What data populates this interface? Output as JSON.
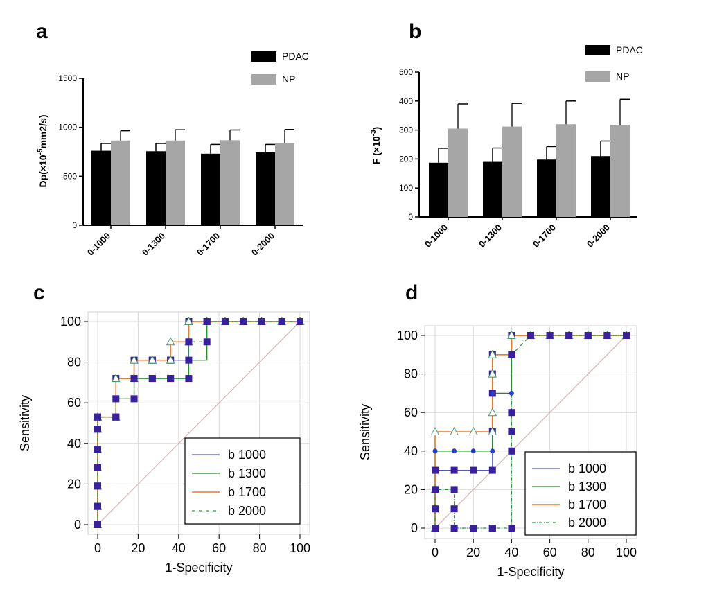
{
  "panels": {
    "a": "a",
    "b": "b",
    "c": "c",
    "d": "d"
  },
  "colors": {
    "pdac": "#000000",
    "np": "#a6a6a6",
    "b1000": "#5555cc",
    "b1300": "#228822",
    "b1700": "#f07820",
    "b2000": "#1f9e3a",
    "marker_square": "#3a1fa0",
    "diag": "#d9b3b3",
    "grid": "#d9d9d9"
  },
  "chart_data": [
    {
      "id": "a",
      "type": "bar",
      "ylabel_main": "Dp(×10",
      "ylabel_sup": "-5",
      "ylabel_tail": "mm2/s)",
      "categories": [
        "0-1000",
        "0-1300",
        "0-1700",
        "0-2000"
      ],
      "series": [
        {
          "name": "PDAC",
          "values": [
            760,
            755,
            730,
            745
          ],
          "errors": [
            75,
            80,
            95,
            80
          ]
        },
        {
          "name": "NP",
          "values": [
            865,
            865,
            868,
            838
          ],
          "errors": [
            100,
            110,
            105,
            140
          ]
        }
      ],
      "ylim": [
        0,
        1500
      ],
      "yticks": [
        "0",
        "500",
        "1000",
        "1500"
      ],
      "ytick_values": [
        0,
        500,
        1000,
        1500
      ]
    },
    {
      "id": "b",
      "type": "bar",
      "ylabel_main": "F (×10",
      "ylabel_sup": "-3",
      "ylabel_tail": ")",
      "categories": [
        "0-1000",
        "0-1300",
        "0-1700",
        "0-2000"
      ],
      "series": [
        {
          "name": "PDAC",
          "values": [
            187,
            190,
            198,
            210
          ],
          "errors": [
            50,
            48,
            45,
            52
          ]
        },
        {
          "name": "NP",
          "values": [
            305,
            312,
            320,
            318
          ],
          "errors": [
            85,
            80,
            80,
            88
          ]
        }
      ],
      "ylim": [
        0,
        500
      ],
      "yticks": [
        "0",
        "100",
        "200",
        "300",
        "400",
        "500"
      ],
      "ytick_values": [
        0,
        100,
        200,
        300,
        400,
        500
      ]
    },
    {
      "id": "c",
      "type": "line",
      "xlabel": "1-Specificity",
      "ylabel": "Sensitivity",
      "xlim": [
        0,
        100
      ],
      "ylim": [
        0,
        100
      ],
      "xticks": [
        "0",
        "20",
        "40",
        "60",
        "80",
        "100"
      ],
      "yticks": [
        "0",
        "20",
        "40",
        "60",
        "80",
        "100"
      ],
      "tick_values": [
        0,
        20,
        40,
        60,
        80,
        100
      ],
      "series": [
        {
          "name": "b 1000",
          "x": [
            0,
            0,
            0,
            0,
            0,
            0,
            0,
            9,
            9,
            18,
            18,
            27,
            27,
            36,
            36,
            45,
            45,
            54,
            54,
            63,
            72,
            81,
            91,
            100
          ],
          "y": [
            0,
            9,
            19,
            28,
            37,
            47,
            53,
            53,
            72,
            72,
            81,
            81,
            81,
            81,
            81,
            81,
            100,
            100,
            100,
            100,
            100,
            100,
            100,
            100
          ]
        },
        {
          "name": "b 1300",
          "x": [
            0,
            0,
            0,
            0,
            0,
            0,
            0,
            9,
            9,
            18,
            18,
            27,
            27,
            36,
            36,
            45,
            45,
            54,
            54,
            63,
            72,
            81,
            91,
            100
          ],
          "y": [
            0,
            9,
            19,
            28,
            37,
            47,
            53,
            53,
            62,
            62,
            72,
            72,
            72,
            72,
            72,
            72,
            81,
            81,
            100,
            100,
            100,
            100,
            100,
            100
          ]
        },
        {
          "name": "b 1700",
          "x": [
            0,
            0,
            0,
            0,
            0,
            0,
            0,
            9,
            9,
            18,
            18,
            27,
            27,
            36,
            36,
            45,
            45,
            54,
            54,
            63,
            72,
            81,
            91,
            100
          ],
          "y": [
            0,
            9,
            19,
            28,
            37,
            47,
            53,
            53,
            72,
            72,
            81,
            81,
            81,
            81,
            90,
            90,
            100,
            100,
            100,
            100,
            100,
            100,
            100,
            100
          ]
        },
        {
          "name": "b 2000",
          "x": [
            0,
            0,
            0,
            0,
            0,
            0,
            0,
            9,
            9,
            18,
            18,
            27,
            27,
            36,
            36,
            45,
            45,
            54,
            54,
            63,
            72,
            81,
            91,
            100
          ],
          "y": [
            0,
            9,
            19,
            28,
            37,
            47,
            53,
            53,
            62,
            62,
            72,
            72,
            72,
            72,
            72,
            72,
            90,
            90,
            100,
            100,
            100,
            100,
            100,
            100
          ]
        }
      ],
      "legend": [
        "b 1000",
        "b 1300",
        "b 1700",
        "b 2000"
      ],
      "legend_position": "bottom-right"
    },
    {
      "id": "d",
      "type": "line",
      "xlabel": "1-Specificity",
      "ylabel": "Sensitivity",
      "xlim": [
        0,
        100
      ],
      "ylim": [
        0,
        100
      ],
      "xticks": [
        "0",
        "20",
        "40",
        "60",
        "80",
        "100"
      ],
      "yticks": [
        "0",
        "20",
        "40",
        "60",
        "80",
        "100"
      ],
      "tick_values": [
        0,
        20,
        40,
        60,
        80,
        100
      ],
      "series": [
        {
          "name": "b 1000",
          "x": [
            0,
            0,
            0,
            10,
            20,
            30,
            30,
            30,
            30,
            30,
            40,
            40,
            50,
            60,
            70,
            80,
            90,
            100
          ],
          "y": [
            0,
            20,
            30,
            30,
            30,
            30,
            50,
            70,
            80,
            90,
            90,
            100,
            100,
            100,
            100,
            100,
            100,
            100
          ]
        },
        {
          "name": "b 1300",
          "x": [
            0,
            0,
            0,
            10,
            20,
            30,
            30,
            30,
            30,
            40,
            40,
            40,
            50,
            60,
            70,
            80,
            90,
            100
          ],
          "y": [
            0,
            20,
            40,
            40,
            40,
            40,
            50,
            60,
            70,
            70,
            90,
            100,
            100,
            100,
            100,
            100,
            100,
            100
          ]
        },
        {
          "name": "b 1700",
          "x": [
            0,
            0,
            0,
            10,
            20,
            30,
            30,
            30,
            30,
            40,
            40,
            50,
            60,
            70,
            80,
            90,
            100
          ],
          "y": [
            0,
            20,
            50,
            50,
            50,
            50,
            60,
            80,
            90,
            90,
            100,
            100,
            100,
            100,
            100,
            100,
            100
          ]
        },
        {
          "name": "b 2000",
          "x": [
            0,
            0,
            0,
            10,
            10,
            10,
            20,
            30,
            30,
            40,
            40,
            40,
            40,
            40,
            50,
            60,
            70,
            80,
            90,
            100
          ],
          "y": [
            0,
            10,
            20,
            20,
            10,
            0,
            0,
            0,
            0,
            0,
            40,
            50,
            60,
            90,
            100,
            100,
            100,
            100,
            100,
            100
          ]
        }
      ],
      "legend": [
        "b 1000",
        "b 1300",
        "b 1700",
        "b 2000"
      ],
      "legend_position": "bottom-right"
    }
  ]
}
